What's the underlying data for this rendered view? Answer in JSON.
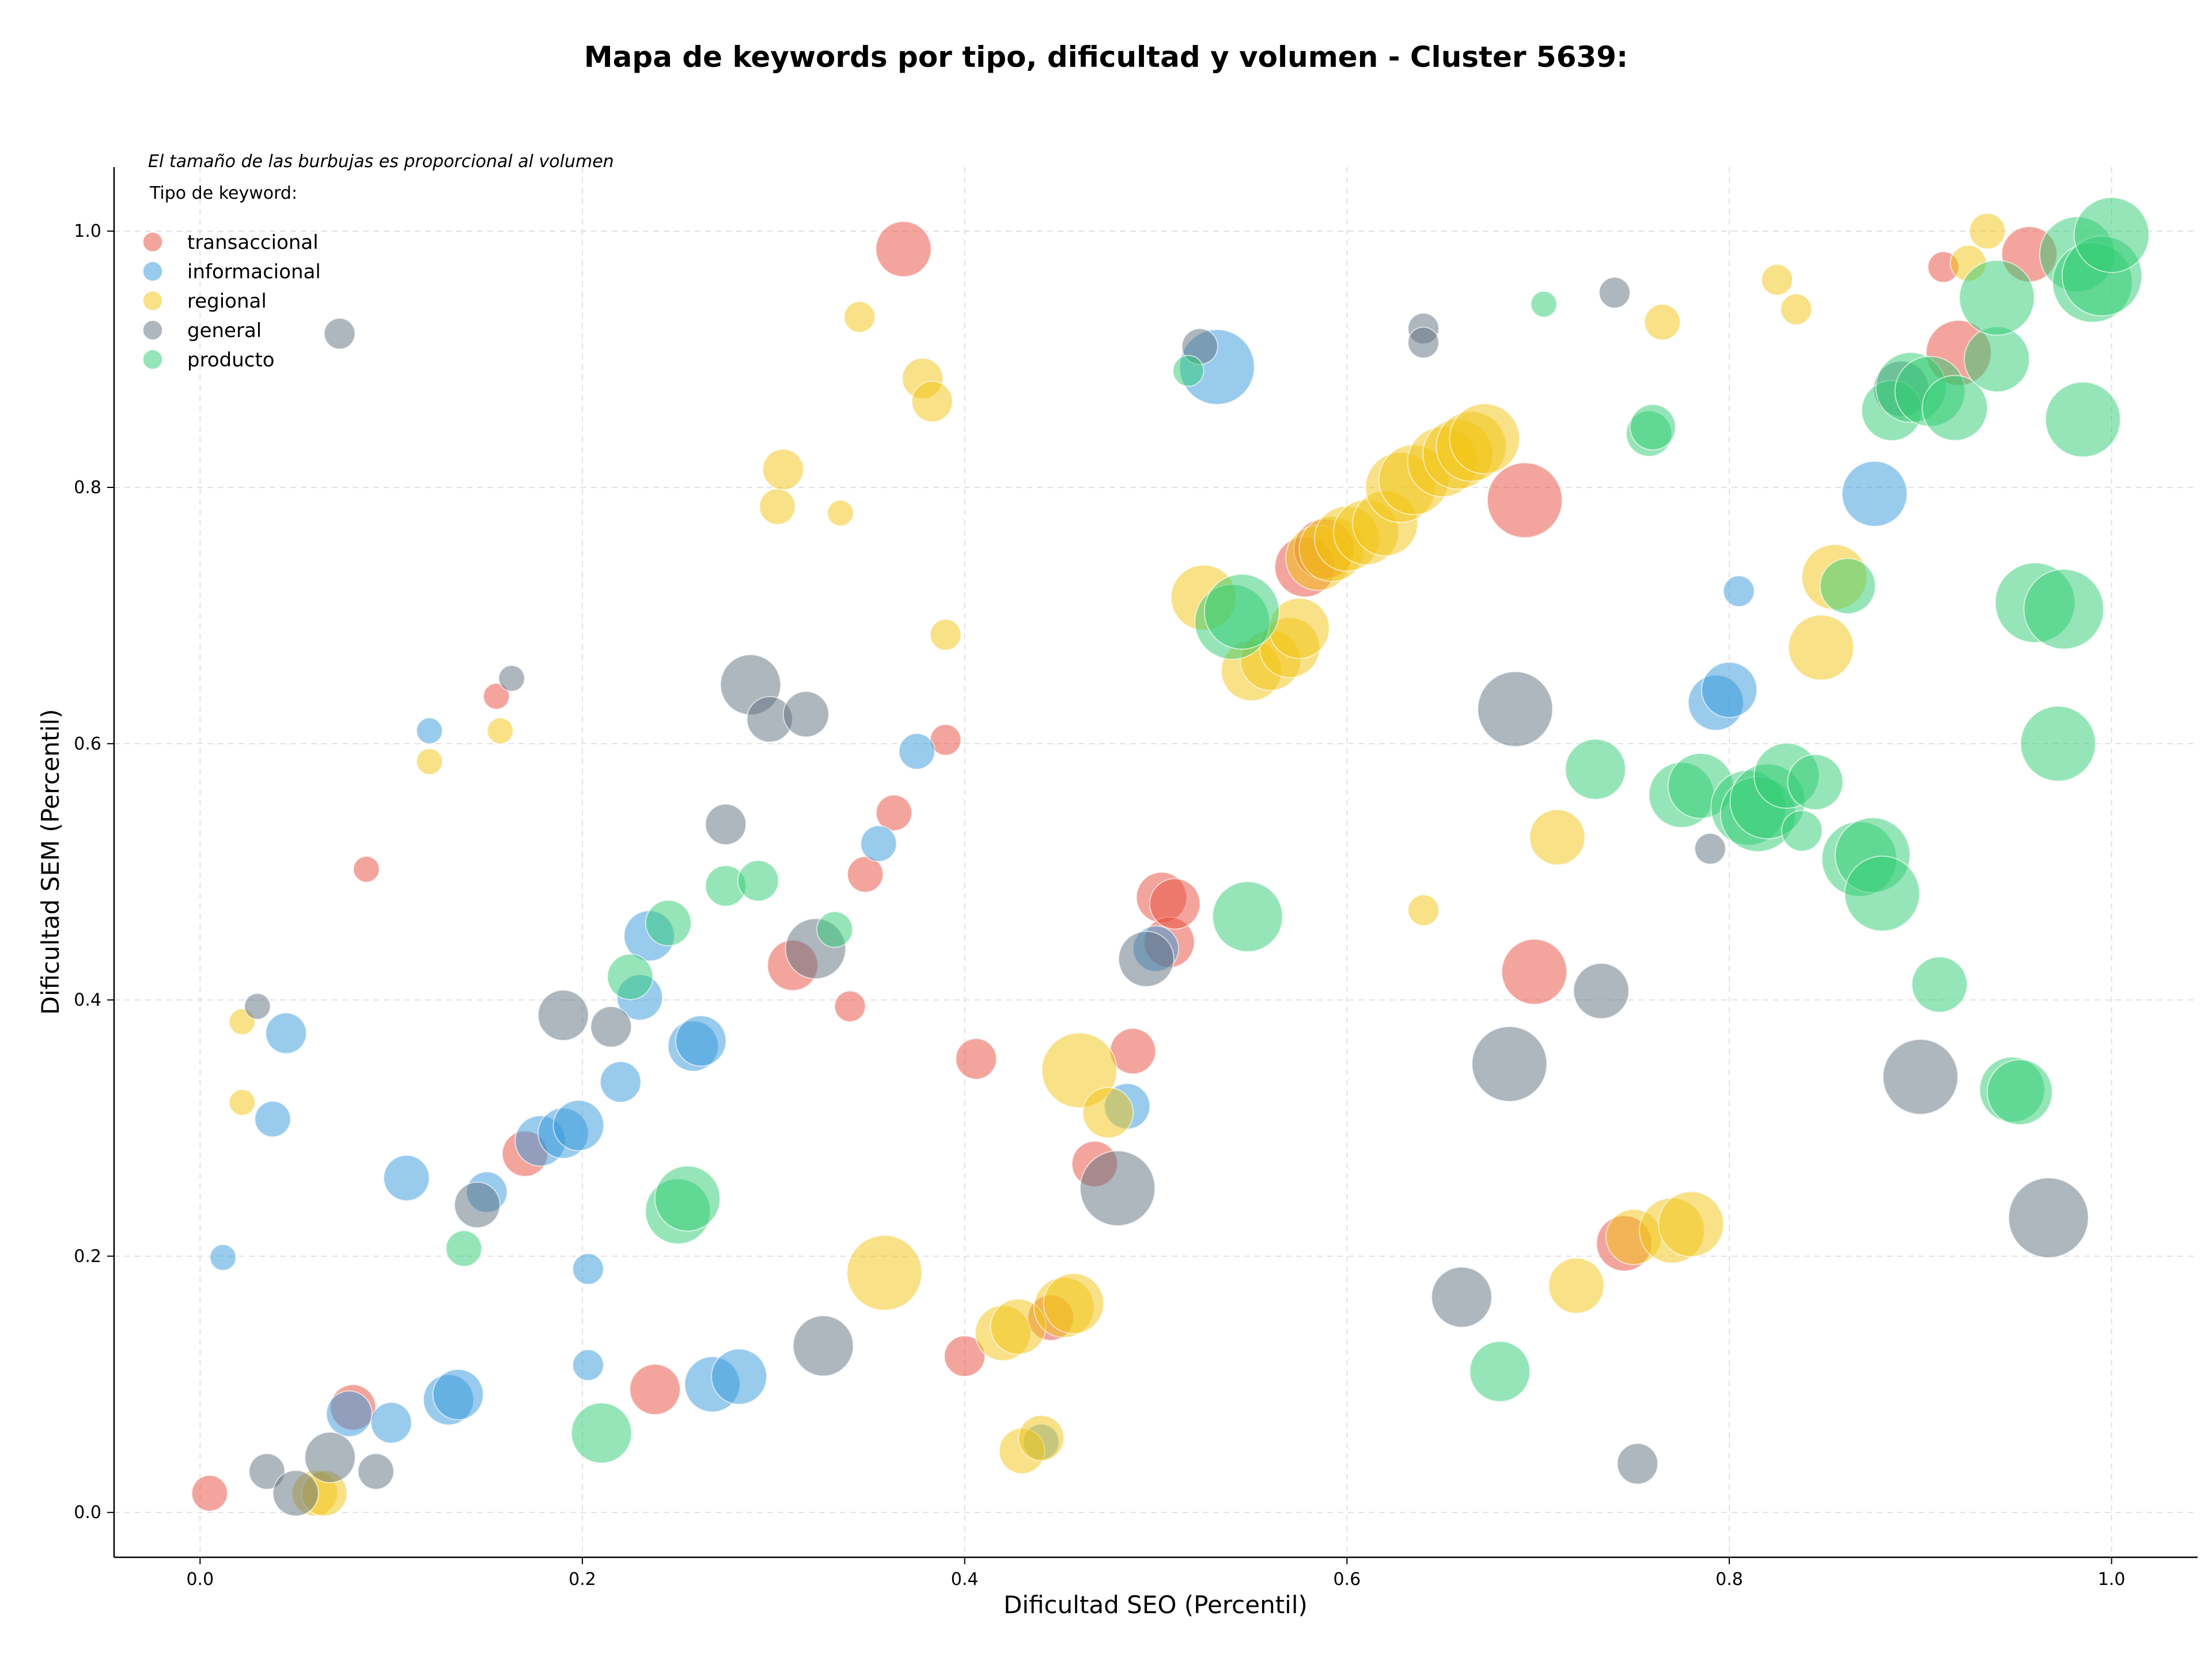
{
  "chart_data": {
    "type": "scatter",
    "title": "Mapa de keywords por tipo, dificultad y volumen - Cluster 5639:",
    "xlabel": "Dificultad SEO (Percentil)",
    "ylabel": "Dificultad SEM (Percentil)",
    "xlim": [
      -0.045,
      1.045
    ],
    "ylim": [
      -0.035,
      1.05
    ],
    "xticks": [
      0.0,
      0.2,
      0.4,
      0.6,
      0.8,
      1.0
    ],
    "yticks": [
      0.0,
      0.2,
      0.4,
      0.6,
      0.8,
      1.0
    ],
    "xtick_labels": [
      "0.0",
      "0.2",
      "0.4",
      "0.6",
      "0.8",
      "1.0"
    ],
    "ytick_labels": [
      "0.0",
      "0.2",
      "0.4",
      "0.6",
      "0.8",
      "1.0"
    ],
    "grid": true,
    "note": "El tamaño de las burbujas es proporcional al volumen",
    "legend_title": "Tipo de keyword:",
    "legend_position": "top-left",
    "series": [
      {
        "name": "transaccional",
        "color": "#e74c3c",
        "points": [
          [
            0.005,
            0.015,
            2
          ],
          [
            0.08,
            0.082,
            3
          ],
          [
            0.087,
            0.502,
            1
          ],
          [
            0.155,
            0.637,
            1
          ],
          [
            0.17,
            0.28,
            3
          ],
          [
            0.238,
            0.096,
            3.5
          ],
          [
            0.31,
            0.427,
            3.5
          ],
          [
            0.34,
            0.395,
            1.5
          ],
          [
            0.348,
            0.498,
            2
          ],
          [
            0.363,
            0.546,
            2
          ],
          [
            0.368,
            0.986,
            4
          ],
          [
            0.39,
            0.603,
            1.5
          ],
          [
            0.4,
            0.122,
            2.5
          ],
          [
            0.406,
            0.354,
            2.5
          ],
          [
            0.445,
            0.152,
            3
          ],
          [
            0.468,
            0.272,
            3
          ],
          [
            0.488,
            0.36,
            3
          ],
          [
            0.503,
            0.48,
            3.5
          ],
          [
            0.507,
            0.445,
            3.5
          ],
          [
            0.51,
            0.475,
            3.5
          ],
          [
            0.578,
            0.738,
            4.5
          ],
          [
            0.588,
            0.752,
            4.5
          ],
          [
            0.693,
            0.79,
            6
          ],
          [
            0.698,
            0.422,
            5
          ],
          [
            0.745,
            0.21,
            4
          ],
          [
            0.912,
            0.972,
            1.5
          ],
          [
            0.92,
            0.905,
            5
          ],
          [
            0.957,
            0.982,
            4
          ]
        ]
      },
      {
        "name": "informacional",
        "color": "#3498db",
        "points": [
          [
            0.012,
            0.199,
            1
          ],
          [
            0.038,
            0.307,
            2
          ],
          [
            0.045,
            0.374,
            2.5
          ],
          [
            0.078,
            0.077,
            3
          ],
          [
            0.1,
            0.07,
            2.5
          ],
          [
            0.108,
            0.261,
            3
          ],
          [
            0.12,
            0.61,
            1
          ],
          [
            0.13,
            0.088,
            3.5
          ],
          [
            0.135,
            0.092,
            3.5
          ],
          [
            0.15,
            0.25,
            2.5
          ],
          [
            0.178,
            0.29,
            3.5
          ],
          [
            0.19,
            0.296,
            3.5
          ],
          [
            0.198,
            0.302,
            3.5
          ],
          [
            0.203,
            0.19,
            1.5
          ],
          [
            0.203,
            0.115,
            1.5
          ],
          [
            0.22,
            0.336,
            2.5
          ],
          [
            0.23,
            0.402,
            3
          ],
          [
            0.235,
            0.45,
            3.5
          ],
          [
            0.258,
            0.364,
            3.5
          ],
          [
            0.262,
            0.368,
            3.5
          ],
          [
            0.268,
            0.1,
            4
          ],
          [
            0.282,
            0.106,
            4
          ],
          [
            0.355,
            0.522,
            2
          ],
          [
            0.375,
            0.594,
            2
          ],
          [
            0.44,
            0.055,
            2
          ],
          [
            0.485,
            0.317,
            3
          ],
          [
            0.5,
            0.44,
            3
          ],
          [
            0.532,
            0.894,
            6
          ],
          [
            0.793,
            0.632,
            4
          ],
          [
            0.8,
            0.642,
            4
          ],
          [
            0.805,
            0.719,
            1.5
          ],
          [
            0.876,
            0.795,
            5
          ]
        ]
      },
      {
        "name": "regional",
        "color": "#f1c40f",
        "points": [
          [
            0.022,
            0.383,
            1
          ],
          [
            0.022,
            0.32,
            1
          ],
          [
            0.06,
            0.015,
            3
          ],
          [
            0.065,
            0.015,
            3
          ],
          [
            0.12,
            0.586,
            1
          ],
          [
            0.157,
            0.61,
            1
          ],
          [
            0.302,
            0.785,
            2
          ],
          [
            0.305,
            0.814,
            2.5
          ],
          [
            0.335,
            0.78,
            1
          ],
          [
            0.345,
            0.933,
            1.5
          ],
          [
            0.358,
            0.187,
            6
          ],
          [
            0.378,
            0.885,
            2.5
          ],
          [
            0.383,
            0.867,
            2.5
          ],
          [
            0.39,
            0.685,
            1.5
          ],
          [
            0.42,
            0.14,
            4
          ],
          [
            0.428,
            0.145,
            4
          ],
          [
            0.43,
            0.048,
            3
          ],
          [
            0.44,
            0.058,
            3
          ],
          [
            0.452,
            0.16,
            4.5
          ],
          [
            0.457,
            0.163,
            4.5
          ],
          [
            0.46,
            0.345,
            6
          ],
          [
            0.475,
            0.312,
            3.5
          ],
          [
            0.525,
            0.714,
            5
          ],
          [
            0.55,
            0.657,
            4.5
          ],
          [
            0.56,
            0.665,
            4.5
          ],
          [
            0.57,
            0.675,
            4.5
          ],
          [
            0.575,
            0.69,
            4.5
          ],
          [
            0.585,
            0.745,
            5
          ],
          [
            0.592,
            0.752,
            5
          ],
          [
            0.6,
            0.76,
            5
          ],
          [
            0.61,
            0.765,
            5
          ],
          [
            0.62,
            0.772,
            5
          ],
          [
            0.628,
            0.8,
            5.5
          ],
          [
            0.635,
            0.806,
            5.5
          ],
          [
            0.65,
            0.82,
            5.5
          ],
          [
            0.658,
            0.826,
            5.5
          ],
          [
            0.665,
            0.832,
            5.5
          ],
          [
            0.672,
            0.838,
            5.5
          ],
          [
            0.64,
            0.47,
            1.5
          ],
          [
            0.71,
            0.527,
            4
          ],
          [
            0.72,
            0.177,
            4
          ],
          [
            0.75,
            0.215,
            4
          ],
          [
            0.77,
            0.22,
            5
          ],
          [
            0.78,
            0.225,
            5
          ],
          [
            0.765,
            0.929,
            2
          ],
          [
            0.825,
            0.962,
            1.5
          ],
          [
            0.835,
            0.939,
            1.5
          ],
          [
            0.848,
            0.675,
            5
          ],
          [
            0.855,
            0.73,
            5
          ],
          [
            0.925,
            0.975,
            2
          ],
          [
            0.935,
            1.0,
            2
          ]
        ]
      },
      {
        "name": "general",
        "color": "#5d6d7e",
        "points": [
          [
            0.03,
            0.395,
            1
          ],
          [
            0.035,
            0.032,
            2
          ],
          [
            0.05,
            0.015,
            3
          ],
          [
            0.068,
            0.043,
            3.5
          ],
          [
            0.073,
            0.92,
            1.5
          ],
          [
            0.092,
            0.032,
            2
          ],
          [
            0.145,
            0.24,
            3
          ],
          [
            0.163,
            0.651,
            1
          ],
          [
            0.19,
            0.388,
            3.5
          ],
          [
            0.215,
            0.379,
            2.5
          ],
          [
            0.275,
            0.537,
            2.5
          ],
          [
            0.288,
            0.646,
            4.5
          ],
          [
            0.298,
            0.619,
            3
          ],
          [
            0.317,
            0.623,
            3
          ],
          [
            0.322,
            0.44,
            4.5
          ],
          [
            0.326,
            0.13,
            4.5
          ],
          [
            0.48,
            0.253,
            6
          ],
          [
            0.495,
            0.432,
            4
          ],
          [
            0.523,
            0.91,
            2
          ],
          [
            0.64,
            0.924,
            1.5
          ],
          [
            0.64,
            0.913,
            1.5
          ],
          [
            0.66,
            0.168,
            4.5
          ],
          [
            0.688,
            0.627,
            6
          ],
          [
            0.685,
            0.35,
            6
          ],
          [
            0.733,
            0.407,
            4
          ],
          [
            0.74,
            0.952,
            1.5
          ],
          [
            0.752,
            0.038,
            2.5
          ],
          [
            0.79,
            0.518,
            1.5
          ],
          [
            0.89,
            0.877,
            4
          ],
          [
            0.9,
            0.34,
            6
          ],
          [
            0.967,
            0.23,
            6.5
          ]
        ]
      },
      {
        "name": "producto",
        "color": "#2ecc71",
        "points": [
          [
            0.138,
            0.206,
            2
          ],
          [
            0.21,
            0.062,
            4.5
          ],
          [
            0.225,
            0.418,
            3
          ],
          [
            0.245,
            0.46,
            3
          ],
          [
            0.25,
            0.235,
            5
          ],
          [
            0.255,
            0.245,
            5
          ],
          [
            0.275,
            0.489,
            2.5
          ],
          [
            0.292,
            0.493,
            2.5
          ],
          [
            0.332,
            0.455,
            2
          ],
          [
            0.517,
            0.891,
            1.5
          ],
          [
            0.54,
            0.695,
            6
          ],
          [
            0.545,
            0.703,
            6
          ],
          [
            0.548,
            0.465,
            5.5
          ],
          [
            0.68,
            0.11,
            4.5
          ],
          [
            0.703,
            0.943,
            1
          ],
          [
            0.73,
            0.58,
            4.5
          ],
          [
            0.758,
            0.842,
            3
          ],
          [
            0.76,
            0.847,
            3
          ],
          [
            0.775,
            0.56,
            5
          ],
          [
            0.785,
            0.567,
            5
          ],
          [
            0.81,
            0.55,
            6
          ],
          [
            0.815,
            0.545,
            6
          ],
          [
            0.82,
            0.555,
            6
          ],
          [
            0.83,
            0.575,
            5
          ],
          [
            0.838,
            0.532,
            2.5
          ],
          [
            0.845,
            0.57,
            4
          ],
          [
            0.862,
            0.723,
            4
          ],
          [
            0.868,
            0.51,
            6
          ],
          [
            0.875,
            0.513,
            6
          ],
          [
            0.88,
            0.483,
            6
          ],
          [
            0.885,
            0.86,
            4.5
          ],
          [
            0.895,
            0.878,
            5.5
          ],
          [
            0.905,
            0.875,
            5.5
          ],
          [
            0.91,
            0.412,
            4
          ],
          [
            0.918,
            0.862,
            5
          ],
          [
            0.94,
            0.9,
            5
          ],
          [
            0.94,
            0.948,
            6
          ],
          [
            0.948,
            0.33,
            5
          ],
          [
            0.952,
            0.328,
            5
          ],
          [
            0.96,
            0.71,
            6.5
          ],
          [
            0.975,
            0.705,
            6.5
          ],
          [
            0.972,
            0.6,
            6
          ],
          [
            0.982,
            0.982,
            6
          ],
          [
            0.985,
            0.853,
            6
          ],
          [
            0.99,
            0.96,
            6.5
          ],
          [
            0.995,
            0.965,
            6.5
          ],
          [
            1.0,
            0.997,
            6
          ]
        ]
      }
    ]
  }
}
